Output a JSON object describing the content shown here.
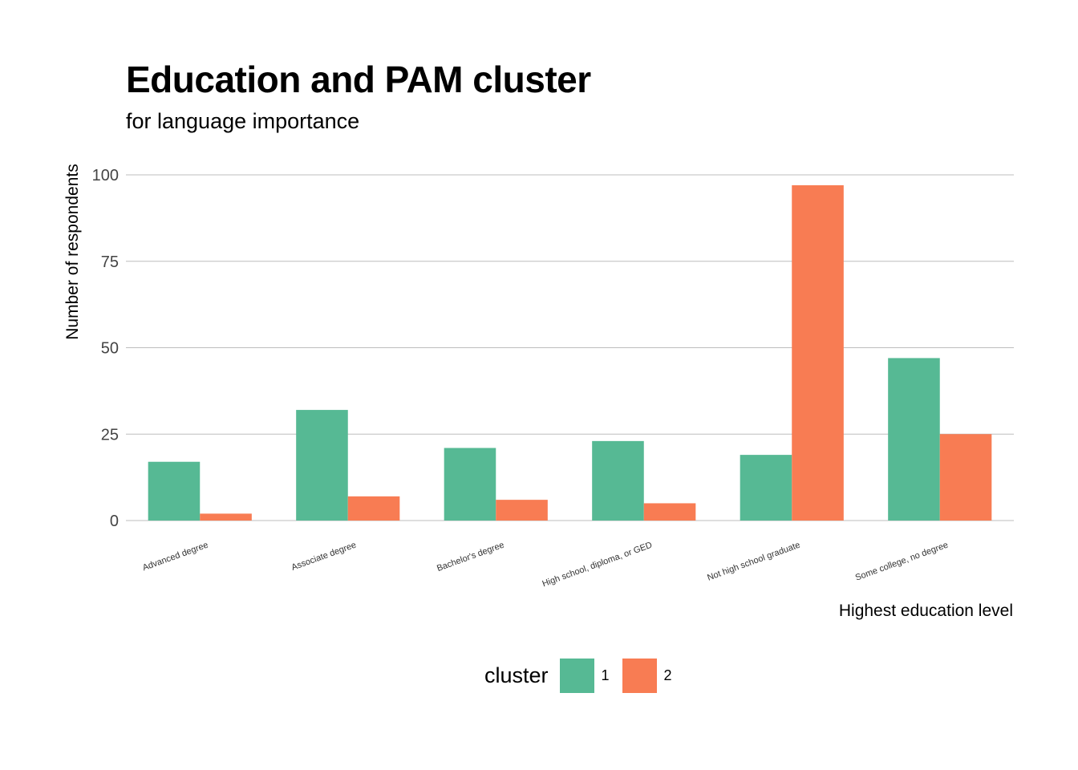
{
  "colors": {
    "cluster_1": "#56B994",
    "cluster_2": "#F87C53",
    "grid": "#bdbdbd"
  },
  "legend": {
    "title": "cluster",
    "items": [
      "1",
      "2"
    ]
  },
  "chart_data": {
    "type": "bar",
    "title": "Education and PAM cluster",
    "subtitle": "for language importance",
    "xlabel": "Highest education level",
    "ylabel": "Number of respondents",
    "ylim": [
      0,
      100
    ],
    "yticks": [
      0,
      25,
      50,
      75,
      100
    ],
    "grid": "horizontal",
    "legend_position": "bottom",
    "categories": [
      "Advanced degree",
      "Associate degree",
      "Bachelor's degree",
      "High school, diploma, or GED",
      "Not high school graduate",
      "Some college, no degree"
    ],
    "series": [
      {
        "name": "1",
        "color": "#56B994",
        "values": [
          17,
          32,
          21,
          23,
          19,
          47
        ]
      },
      {
        "name": "2",
        "color": "#F87C53",
        "values": [
          2,
          7,
          6,
          5,
          97,
          25
        ]
      }
    ]
  }
}
